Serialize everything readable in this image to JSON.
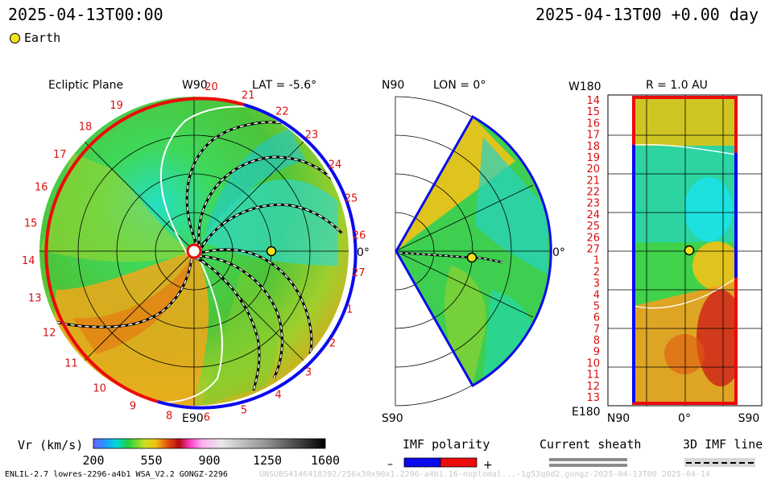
{
  "header": {
    "date_left": "2025-04-13T00:00",
    "date_right": "2025-04-13T00 +0.00 day",
    "earth_label": "Earth"
  },
  "footer": {
    "run_info": "ENLIL-2.7 lowres-2296-a4b1 WSA_V2.2 GONGZ-2296",
    "file_info": "UNSUBS4146418392/256x30x90x1.2296-a4b1.16-noptomal...-1g53q0d2.gongz-2025-04-13T00   2025-04-14"
  },
  "chart_data": [
    {
      "type": "heatmap",
      "panel": "ecliptic",
      "title": "Ecliptic Plane",
      "subtitle": "LAT = -5.6°",
      "top_label": "W90",
      "bottom_label": "E90",
      "right_label": "0°",
      "carrington_ticks": [
        "20",
        "21",
        "22",
        "23",
        "24",
        "25",
        "26",
        "27",
        "1",
        "2",
        "3",
        "4",
        "5",
        "6",
        "8",
        "9",
        "10",
        "11",
        "12",
        "13",
        "14",
        "15",
        "16",
        "17",
        "18",
        "19"
      ],
      "earth": {
        "lon_deg": 0,
        "r_au": 1.0
      }
    },
    {
      "type": "heatmap",
      "panel": "meridional",
      "subtitle": "LON = 0°",
      "top_label": "N90",
      "bottom_label": "S90",
      "right_label": "0°",
      "earth": {
        "lat_deg": 0,
        "r_au": 1.0
      }
    },
    {
      "type": "heatmap",
      "panel": "sphere",
      "subtitle": "R = 1.0 AU",
      "top_label": "W180",
      "bottom_label": "E180",
      "x_ticks": [
        "N90",
        "0°",
        "S90"
      ],
      "y_ticks": [
        "14",
        "15",
        "16",
        "17",
        "18",
        "19",
        "20",
        "21",
        "22",
        "23",
        "24",
        "25",
        "26",
        "27",
        "1",
        "2",
        "3",
        "4",
        "5",
        "6",
        "7",
        "8",
        "9",
        "10",
        "11",
        "12",
        "13"
      ],
      "earth": {
        "lat_deg": 0,
        "lon_deg": 0
      }
    }
  ],
  "colorbar": {
    "label": "Vr (km/s)",
    "ticks": [
      "200",
      "550",
      "900",
      "1250",
      "1600"
    ]
  },
  "imf_legend": {
    "title": "IMF polarity",
    "minus": "–",
    "plus": "+",
    "negative_color": "#0a0aee",
    "positive_color": "#ee0a0a"
  },
  "sheath_legend": {
    "title": "Current sheath"
  },
  "imf_line_legend": {
    "title": "3D IMF line"
  }
}
